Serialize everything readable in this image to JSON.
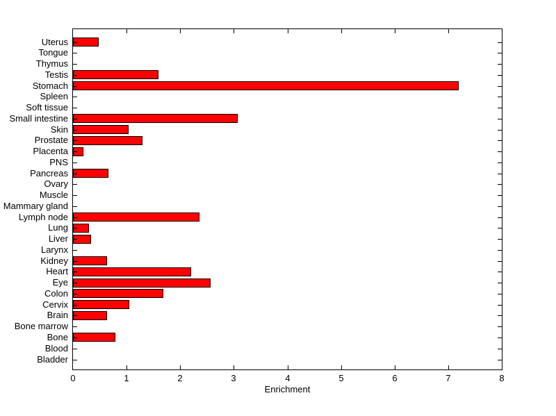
{
  "figure": {
    "background": "#ffffff",
    "text_color": "#000000"
  },
  "chart_data": {
    "type": "bar",
    "orientation": "horizontal",
    "title": "",
    "xlabel": "Enrichment",
    "ylabel": "",
    "xlim": [
      0,
      8
    ],
    "x_ticks": [
      0,
      1,
      2,
      3,
      4,
      5,
      6,
      7,
      8
    ],
    "grid": false,
    "legend": null,
    "bar_color": "#ff0000",
    "bar_edge_color": "#000000",
    "axis_color": "#000000",
    "categories": [
      "Uterus",
      "Tongue",
      "Thymus",
      "Testis",
      "Stomach",
      "Spleen",
      "Soft tissue",
      "Small intestine",
      "Skin",
      "Prostate",
      "Placenta",
      "PNS",
      "Pancreas",
      "Ovary",
      "Muscle",
      "Mammary gland",
      "Lymph node",
      "Lung",
      "Liver",
      "Larynx",
      "Kidney",
      "Heart",
      "Eye",
      "Colon",
      "Cervix",
      "Brain",
      "Bone marrow",
      "Bone",
      "Blood",
      "Bladder"
    ],
    "values": [
      0.48,
      0,
      0,
      1.59,
      7.19,
      0,
      0,
      3.07,
      1.04,
      1.3,
      0.19,
      0,
      0.66,
      0,
      0,
      0,
      2.36,
      0.3,
      0.34,
      0,
      0.63,
      2.21,
      2.57,
      1.69,
      1.05,
      0.64,
      0,
      0.79,
      0,
      0
    ]
  }
}
